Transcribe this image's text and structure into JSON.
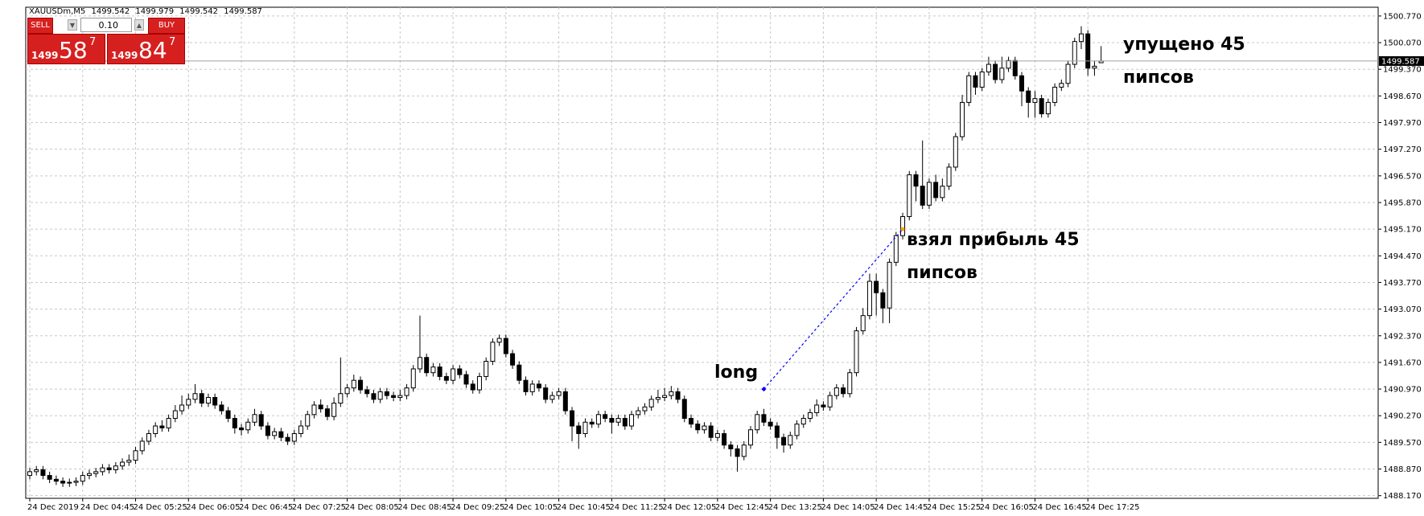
{
  "chart_data": {
    "type": "candlestick",
    "symbol": "XAUUSDm,M5",
    "categories": [
      "24 Dec 2019",
      null,
      null,
      null,
      null,
      null,
      null,
      null,
      "24 Dec 04:45",
      null,
      null,
      null,
      null,
      null,
      null,
      null,
      "24 Dec 05:25",
      null,
      null,
      null,
      null,
      null,
      null,
      null,
      "24 Dec 06:05",
      null,
      null,
      null,
      null,
      null,
      null,
      null,
      "24 Dec 06:45",
      null,
      null,
      null,
      null,
      null,
      null,
      null,
      "24 Dec 07:25",
      null,
      null,
      null,
      null,
      null,
      null,
      null,
      "24 Dec 08:05",
      null,
      null,
      null,
      null,
      null,
      null,
      null,
      "24 Dec 08:45",
      null,
      null,
      null,
      null,
      null,
      null,
      null,
      "24 Dec 09:25",
      null,
      null,
      null,
      null,
      null,
      null,
      null,
      "24 Dec 10:05",
      null,
      null,
      null,
      null,
      null,
      null,
      null,
      "24 Dec 10:45",
      null,
      null,
      null,
      null,
      null,
      null,
      null,
      "24 Dec 11:25",
      null,
      null,
      null,
      null,
      null,
      null,
      null,
      "24 Dec 12:05",
      null,
      null,
      null,
      null,
      null,
      null,
      null,
      "24 Dec 12:45",
      null,
      null,
      null,
      null,
      null,
      null,
      null,
      "24 Dec 13:25",
      null,
      null,
      null,
      null,
      null,
      null,
      null,
      "24 Dec 14:05",
      null,
      null,
      null,
      null,
      null,
      null,
      null,
      "24 Dec 14:45",
      null,
      null,
      null,
      null,
      null,
      null,
      null,
      "24 Dec 15:25",
      null,
      null,
      null,
      null,
      null,
      null,
      null,
      "24 Dec 16:05",
      null,
      null,
      null,
      null,
      null,
      null,
      null,
      "24 Dec 16:45",
      null,
      null,
      null,
      null,
      null,
      null,
      null,
      "24 Dec 17:25",
      null,
      null
    ],
    "open": [
      1488.7,
      1488.8,
      1488.85,
      1488.7,
      1488.6,
      1488.55,
      1488.5,
      1488.52,
      1488.55,
      1488.7,
      1488.75,
      1488.8,
      1488.9,
      1488.85,
      1488.95,
      1489.05,
      1489.1,
      1489.35,
      1489.6,
      1489.8,
      1490.0,
      1489.95,
      1490.2,
      1490.4,
      1490.55,
      1490.7,
      1490.85,
      1490.6,
      1490.75,
      1490.55,
      1490.4,
      1490.2,
      1489.95,
      1489.9,
      1490.1,
      1490.3,
      1490.0,
      1489.75,
      1489.85,
      1489.7,
      1489.6,
      1489.8,
      1490.0,
      1490.3,
      1490.55,
      1490.45,
      1490.25,
      1490.6,
      1490.85,
      1491.0,
      1491.2,
      1490.95,
      1490.85,
      1490.7,
      1490.9,
      1490.8,
      1490.75,
      1490.8,
      1491.0,
      1491.5,
      1491.8,
      1491.4,
      1491.55,
      1491.3,
      1491.2,
      1491.5,
      1491.35,
      1491.1,
      1490.95,
      1491.3,
      1491.7,
      1492.2,
      1492.3,
      1491.9,
      1491.6,
      1491.2,
      1490.9,
      1491.1,
      1491.0,
      1490.7,
      1490.8,
      1490.9,
      1490.4,
      1490.0,
      1489.8,
      1490.1,
      1490.05,
      1490.3,
      1490.2,
      1490.1,
      1490.2,
      1490.0,
      1490.3,
      1490.4,
      1490.5,
      1490.7,
      1490.75,
      1490.8,
      1490.9,
      1490.7,
      1490.2,
      1490.05,
      1489.9,
      1490.0,
      1489.7,
      1489.8,
      1489.5,
      1489.4,
      1489.2,
      1489.5,
      1489.9,
      1490.3,
      1490.1,
      1490.0,
      1489.7,
      1489.5,
      1489.75,
      1490.05,
      1490.2,
      1490.35,
      1490.55,
      1490.5,
      1490.8,
      1491.0,
      1490.85,
      1491.4,
      1492.5,
      1492.9,
      1493.8,
      1493.5,
      1493.1,
      1494.3,
      1495.0,
      1495.5,
      1496.6,
      1496.3,
      1495.8,
      1496.4,
      1496.0,
      1496.3,
      1496.8,
      1497.6,
      1498.5,
      1499.2,
      1498.9,
      1499.3,
      1499.5,
      1499.1,
      1499.4,
      1499.6,
      1499.2,
      1498.8,
      1498.5,
      1498.6,
      1498.2,
      1498.5,
      1498.9,
      1499.0,
      1499.5,
      1500.1,
      1500.3,
      1499.4,
      1499.542
    ],
    "high": [
      1488.9,
      1488.95,
      1488.95,
      1488.8,
      1488.7,
      1488.65,
      1488.62,
      1488.65,
      1488.8,
      1488.85,
      1488.9,
      1489.0,
      1489.0,
      1489.05,
      1489.15,
      1489.25,
      1489.45,
      1489.7,
      1489.9,
      1490.1,
      1490.15,
      1490.3,
      1490.55,
      1490.8,
      1490.85,
      1491.1,
      1490.95,
      1490.85,
      1490.85,
      1490.65,
      1490.5,
      1490.3,
      1490.05,
      1490.2,
      1490.45,
      1490.4,
      1490.1,
      1489.95,
      1489.95,
      1489.8,
      1489.9,
      1490.15,
      1490.4,
      1490.65,
      1490.7,
      1490.55,
      1490.75,
      1491.8,
      1491.1,
      1491.35,
      1491.3,
      1491.05,
      1490.95,
      1491.0,
      1491.0,
      1490.9,
      1490.95,
      1491.1,
      1491.6,
      1492.9,
      1491.9,
      1491.65,
      1491.65,
      1491.4,
      1491.6,
      1491.6,
      1491.45,
      1491.2,
      1491.4,
      1491.8,
      1492.3,
      1492.4,
      1492.4,
      1492.0,
      1491.7,
      1491.3,
      1491.2,
      1491.2,
      1491.1,
      1490.9,
      1491.0,
      1491.0,
      1490.5,
      1490.1,
      1490.2,
      1490.2,
      1490.4,
      1490.4,
      1490.3,
      1490.3,
      1490.3,
      1490.4,
      1490.5,
      1490.6,
      1490.8,
      1490.95,
      1491.0,
      1491.05,
      1491.0,
      1490.8,
      1490.3,
      1490.15,
      1490.1,
      1490.1,
      1489.9,
      1489.9,
      1489.6,
      1489.5,
      1489.6,
      1490.0,
      1490.4,
      1490.45,
      1490.2,
      1490.1,
      1489.8,
      1489.85,
      1490.15,
      1490.3,
      1490.45,
      1490.7,
      1490.65,
      1490.9,
      1491.1,
      1491.1,
      1491.5,
      1492.6,
      1493.1,
      1494.0,
      1494.0,
      1493.6,
      1494.4,
      1495.1,
      1495.6,
      1496.7,
      1496.7,
      1497.5,
      1496.5,
      1496.6,
      1496.5,
      1496.9,
      1497.7,
      1498.7,
      1499.3,
      1499.3,
      1499.4,
      1499.7,
      1499.6,
      1499.7,
      1499.7,
      1499.7,
      1499.3,
      1498.9,
      1498.8,
      1498.7,
      1498.6,
      1499.0,
      1499.1,
      1499.6,
      1500.2,
      1500.5,
      1500.4,
      1499.6,
      1499.979
    ],
    "low": [
      1488.6,
      1488.7,
      1488.6,
      1488.5,
      1488.45,
      1488.4,
      1488.4,
      1488.42,
      1488.45,
      1488.6,
      1488.65,
      1488.7,
      1488.75,
      1488.75,
      1488.85,
      1488.95,
      1489.0,
      1489.25,
      1489.5,
      1489.7,
      1489.85,
      1489.85,
      1490.1,
      1490.3,
      1490.45,
      1490.6,
      1490.5,
      1490.5,
      1490.45,
      1490.3,
      1490.1,
      1489.8,
      1489.75,
      1489.8,
      1490.0,
      1489.9,
      1489.65,
      1489.65,
      1489.6,
      1489.5,
      1489.5,
      1489.7,
      1489.9,
      1490.2,
      1490.35,
      1490.15,
      1490.15,
      1490.5,
      1490.75,
      1490.9,
      1490.85,
      1490.75,
      1490.6,
      1490.6,
      1490.7,
      1490.65,
      1490.65,
      1490.7,
      1490.9,
      1491.4,
      1491.3,
      1491.3,
      1491.2,
      1491.1,
      1491.1,
      1491.25,
      1491.0,
      1490.85,
      1490.85,
      1491.2,
      1491.6,
      1492.1,
      1491.8,
      1491.5,
      1491.1,
      1490.8,
      1490.8,
      1490.9,
      1490.6,
      1490.6,
      1490.7,
      1490.3,
      1489.6,
      1489.4,
      1489.7,
      1489.95,
      1489.95,
      1490.1,
      1489.8,
      1490.0,
      1489.9,
      1489.9,
      1490.2,
      1490.3,
      1490.4,
      1490.6,
      1490.65,
      1490.7,
      1490.6,
      1490.1,
      1489.95,
      1489.8,
      1489.8,
      1489.6,
      1489.6,
      1489.4,
      1489.2,
      1488.8,
      1489.1,
      1489.4,
      1489.8,
      1490.0,
      1489.9,
      1489.4,
      1489.3,
      1489.4,
      1489.65,
      1489.95,
      1490.1,
      1490.25,
      1490.4,
      1490.4,
      1490.7,
      1490.75,
      1490.75,
      1491.3,
      1492.4,
      1492.8,
      1492.9,
      1492.7,
      1492.7,
      1494.2,
      1494.9,
      1495.4,
      1495.9,
      1495.7,
      1495.7,
      1495.9,
      1495.9,
      1496.2,
      1496.7,
      1497.5,
      1498.4,
      1498.7,
      1498.8,
      1499.2,
      1499.0,
      1499.0,
      1499.3,
      1499.1,
      1498.4,
      1498.1,
      1498.1,
      1498.1,
      1498.1,
      1498.4,
      1498.8,
      1498.9,
      1499.4,
      1499.9,
      1499.2,
      1499.2,
      1499.542
    ],
    "close": [
      1488.8,
      1488.85,
      1488.7,
      1488.6,
      1488.55,
      1488.5,
      1488.52,
      1488.55,
      1488.7,
      1488.75,
      1488.8,
      1488.9,
      1488.85,
      1488.95,
      1489.05,
      1489.1,
      1489.35,
      1489.6,
      1489.8,
      1490.0,
      1489.95,
      1490.2,
      1490.4,
      1490.55,
      1490.7,
      1490.85,
      1490.6,
      1490.75,
      1490.55,
      1490.4,
      1490.2,
      1489.95,
      1489.9,
      1490.1,
      1490.3,
      1490.0,
      1489.75,
      1489.85,
      1489.7,
      1489.6,
      1489.8,
      1490.0,
      1490.3,
      1490.55,
      1490.45,
      1490.25,
      1490.6,
      1490.85,
      1491.0,
      1491.2,
      1490.95,
      1490.85,
      1490.7,
      1490.9,
      1490.8,
      1490.75,
      1490.8,
      1491.0,
      1491.5,
      1491.8,
      1491.4,
      1491.55,
      1491.3,
      1491.2,
      1491.5,
      1491.35,
      1491.1,
      1490.95,
      1491.3,
      1491.7,
      1492.2,
      1492.3,
      1491.9,
      1491.6,
      1491.2,
      1490.9,
      1491.1,
      1491.0,
      1490.7,
      1490.8,
      1490.9,
      1490.4,
      1490.0,
      1489.8,
      1490.1,
      1490.05,
      1490.3,
      1490.2,
      1490.1,
      1490.2,
      1490.0,
      1490.3,
      1490.4,
      1490.5,
      1490.7,
      1490.75,
      1490.8,
      1490.9,
      1490.7,
      1490.2,
      1490.05,
      1489.9,
      1490.0,
      1489.7,
      1489.8,
      1489.5,
      1489.4,
      1489.2,
      1489.5,
      1489.9,
      1490.3,
      1490.1,
      1490.0,
      1489.7,
      1489.5,
      1489.75,
      1490.05,
      1490.2,
      1490.35,
      1490.55,
      1490.5,
      1490.8,
      1491.0,
      1490.85,
      1491.4,
      1492.5,
      1492.9,
      1493.8,
      1493.5,
      1493.1,
      1494.3,
      1495.0,
      1495.5,
      1496.6,
      1496.3,
      1495.8,
      1496.4,
      1496.0,
      1496.3,
      1496.8,
      1497.6,
      1498.5,
      1499.2,
      1498.9,
      1499.3,
      1499.5,
      1499.1,
      1499.4,
      1499.6,
      1499.2,
      1498.8,
      1498.5,
      1498.6,
      1498.2,
      1498.5,
      1498.9,
      1499.0,
      1499.5,
      1500.1,
      1500.3,
      1499.4,
      1499.45,
      1499.587
    ],
    "ylim": [
      1488.1,
      1501.0
    ],
    "yticks": [
      {
        "value": 1500.77,
        "label": "1500.770"
      },
      {
        "value": 1500.07,
        "label": "1500.070"
      },
      {
        "value": 1499.37,
        "label": "1499.370"
      },
      {
        "value": 1498.67,
        "label": "1498.670"
      },
      {
        "value": 1497.97,
        "label": "1497.970"
      },
      {
        "value": 1497.27,
        "label": "1497.270"
      },
      {
        "value": 1496.57,
        "label": "1496.570"
      },
      {
        "value": 1495.87,
        "label": "1495.870"
      },
      {
        "value": 1495.17,
        "label": "1495.170"
      },
      {
        "value": 1494.47,
        "label": "1494.470"
      },
      {
        "value": 1493.77,
        "label": "1493.770"
      },
      {
        "value": 1493.07,
        "label": "1493.070"
      },
      {
        "value": 1492.37,
        "label": "1492.370"
      },
      {
        "value": 1491.67,
        "label": "1491.670"
      },
      {
        "value": 1490.97,
        "label": "1490.970"
      },
      {
        "value": 1490.27,
        "label": "1490.270"
      },
      {
        "value": 1489.57,
        "label": "1489.570"
      },
      {
        "value": 1488.87,
        "label": "1488.870"
      },
      {
        "value": 1488.17,
        "label": "1488.170"
      }
    ],
    "grid": true,
    "colors": {
      "up": "#ffffff",
      "down": "#000000",
      "edge": "#000000",
      "grid": "#c8c8c8",
      "trade": "#0000ff",
      "exit": "#ffa500"
    },
    "trade": {
      "entry": 1490.97,
      "exit": 1495.17
    },
    "annotations": [
      {
        "lines": [
          "long"
        ]
      },
      {
        "lines": [
          "взял прибыль 45",
          "пипсов"
        ]
      },
      {
        "lines": [
          "упущено 45",
          "пипсов"
        ]
      }
    ]
  },
  "trade_panel": {
    "sell": "SELL",
    "buy": "BUY",
    "volume": "0.10",
    "bid": [
      "1499",
      "58",
      "7"
    ],
    "ask": [
      "1499",
      "84",
      "7"
    ]
  }
}
